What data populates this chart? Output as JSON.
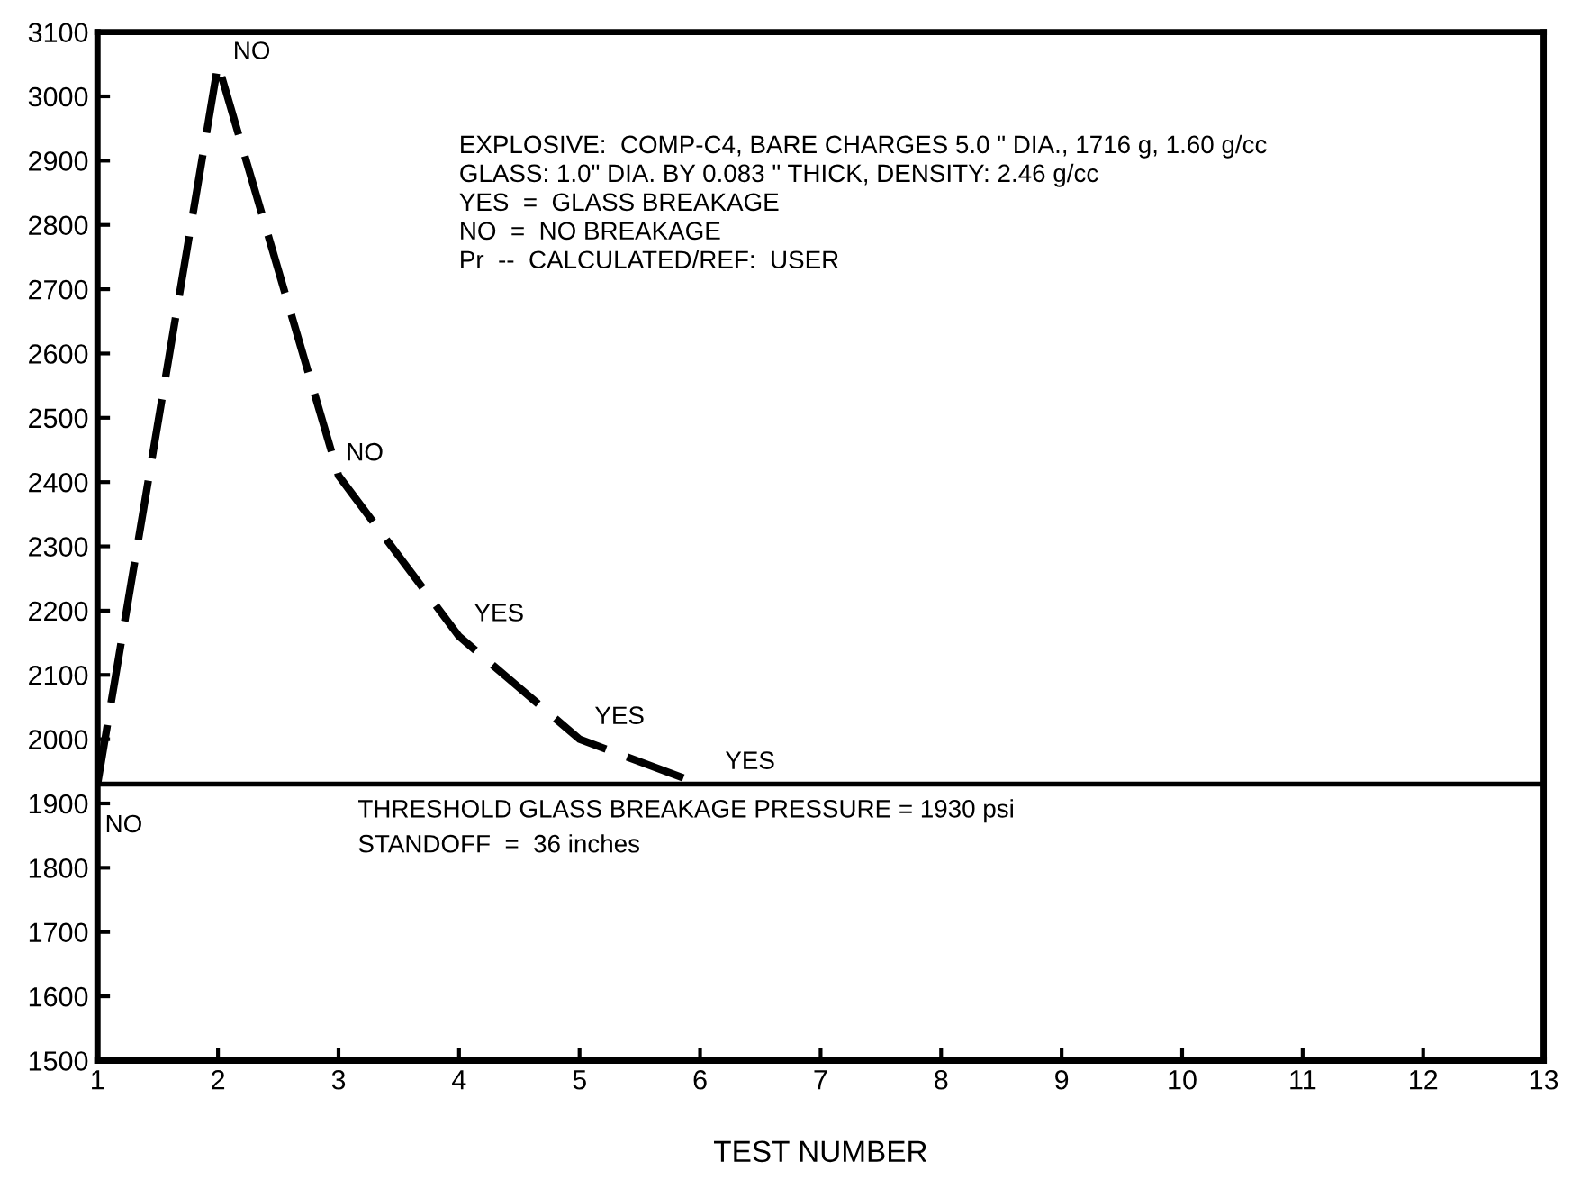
{
  "chart_data": {
    "type": "line",
    "xlabel": "TEST NUMBER",
    "x": [
      1,
      2,
      3,
      4,
      5,
      6
    ],
    "series": [
      {
        "color": "#000000",
        "values": [
          1930,
          3050,
          2410,
          2160,
          2000,
          1930
        ]
      }
    ],
    "xlim": [
      1,
      13
    ],
    "xticks": [
      1,
      2,
      3,
      4,
      5,
      6,
      7,
      8,
      9,
      10,
      11,
      12,
      13
    ],
    "ylim": [
      1500,
      3100
    ],
    "yticks": [
      1500,
      1600,
      1700,
      1800,
      1900,
      2000,
      2100,
      2200,
      2300,
      2400,
      2500,
      2600,
      2700,
      2800,
      2900,
      3000,
      3100
    ],
    "grid": false,
    "marker": "none",
    "line_style": "dashed",
    "ref_lines": [
      {
        "axis": "y",
        "value": 1930,
        "label": "THRESHOLD GLASS BREAKAGE PRESSURE = 1930 psi",
        "color": "#000000",
        "line_style": "solid"
      }
    ],
    "annotations": [
      {
        "text": "NO",
        "x": 1,
        "y": 1930
      },
      {
        "text": "NO",
        "x": 2,
        "y": 3050
      },
      {
        "text": "NO",
        "x": 3,
        "y": 2410
      },
      {
        "text": "YES",
        "x": 4,
        "y": 2160
      },
      {
        "text": "YES",
        "x": 5,
        "y": 2000
      },
      {
        "text": "YES",
        "x": 6,
        "y": 1930
      },
      "EXPLOSIVE:  COMP-C4, BARE CHARGES 5.0 \" DIA., 1716 g, 1.60 g/cc",
      "GLASS: 1.0\" DIA. BY 0.083 \" THICK, DENSITY: 2.46 g/cc",
      "YES  =  GLASS BREAKAGE",
      "NO  =  NO BREAKAGE",
      "Pr  --  CALCULATED/REF:  USER",
      "STANDOFF  =  36 inches"
    ]
  }
}
